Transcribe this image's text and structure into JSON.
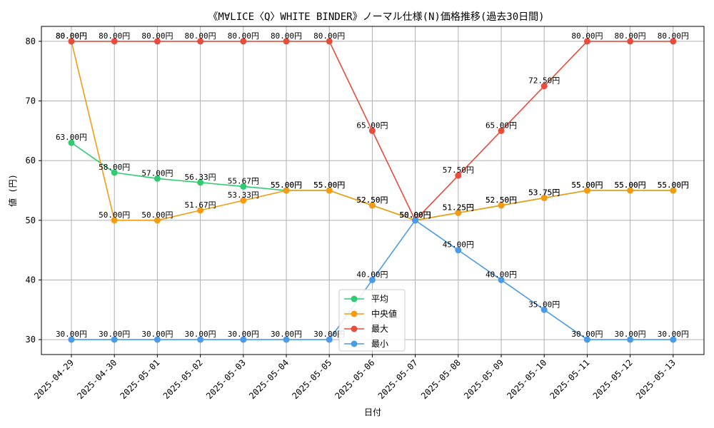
{
  "chart_data": {
    "type": "line",
    "title": "《M∀LICE〈Q〉WHITE BINDER》ノーマル仕様(N)価格推移(過去30日間)",
    "xlabel": "日付",
    "ylabel": "値 (円)",
    "ylim": [
      27.5,
      82.5
    ],
    "yticks": [
      "30",
      "40",
      "50",
      "60",
      "70",
      "80"
    ],
    "grid": true,
    "legend_position": "bottom-center",
    "categories": [
      "2025-04-29",
      "2025-04-30",
      "2025-05-01",
      "2025-05-02",
      "2025-05-03",
      "2025-05-04",
      "2025-05-05",
      "2025-05-06",
      "2025-05-07",
      "2025-05-08",
      "2025-05-09",
      "2025-05-10",
      "2025-05-11",
      "2025-05-12",
      "2025-05-13"
    ],
    "series": [
      {
        "name": "平均",
        "color": "#2ecc71",
        "values": [
          63.0,
          58.0,
          57.0,
          56.33,
          55.67,
          55.0,
          55.0,
          52.5,
          50.0,
          51.25,
          52.5,
          53.75,
          55.0,
          55.0,
          55.0
        ],
        "labels": [
          "63.00円",
          "58.00円",
          "57.00円",
          "56.33円",
          "55.67円",
          "55.00円",
          "55.00円",
          "52.50円",
          "50.00円",
          "51.25円",
          "52.50円",
          "53.75円",
          "55.00円",
          "55.00円",
          "55.00円"
        ]
      },
      {
        "name": "中央値",
        "color": "#f39c12",
        "values": [
          80.0,
          50.0,
          50.0,
          51.67,
          53.33,
          55.0,
          55.0,
          52.5,
          50.0,
          51.25,
          52.5,
          53.75,
          55.0,
          55.0,
          55.0
        ],
        "labels": [
          "80.00円",
          "50.00円",
          "50.00円",
          "51.67円",
          "53.33円",
          "55.00円",
          "55.00円",
          "52.50円",
          "50.00円",
          "51.25円",
          "52.50円",
          "53.75円",
          "55.00円",
          "55.00円",
          "55.00円"
        ]
      },
      {
        "name": "最大",
        "color": "#e74c3c",
        "values": [
          80.0,
          80.0,
          80.0,
          80.0,
          80.0,
          80.0,
          80.0,
          65.0,
          50.0,
          57.5,
          65.0,
          72.5,
          80.0,
          80.0,
          80.0
        ],
        "labels": [
          "80.00円",
          "80.00円",
          "80.00円",
          "80.00円",
          "80.00円",
          "80.00円",
          "80.00円",
          "65.00円",
          "50.00円",
          "57.50円",
          "65.00円",
          "72.50円",
          "80.00円",
          "80.00円",
          "80.00円"
        ]
      },
      {
        "name": "最小",
        "color": "#4c9be8",
        "values": [
          30.0,
          30.0,
          30.0,
          30.0,
          30.0,
          30.0,
          30.0,
          40.0,
          50.0,
          45.0,
          40.0,
          35.0,
          30.0,
          30.0,
          30.0
        ],
        "labels": [
          "30.00円",
          "30.00円",
          "30.00円",
          "30.00円",
          "30.00円",
          "30.00円",
          "30.00円",
          "40.00円",
          "50.00円",
          "45.00円",
          "40.00円",
          "35.00円",
          "30.00円",
          "30.00円",
          "30.00円"
        ]
      }
    ]
  }
}
